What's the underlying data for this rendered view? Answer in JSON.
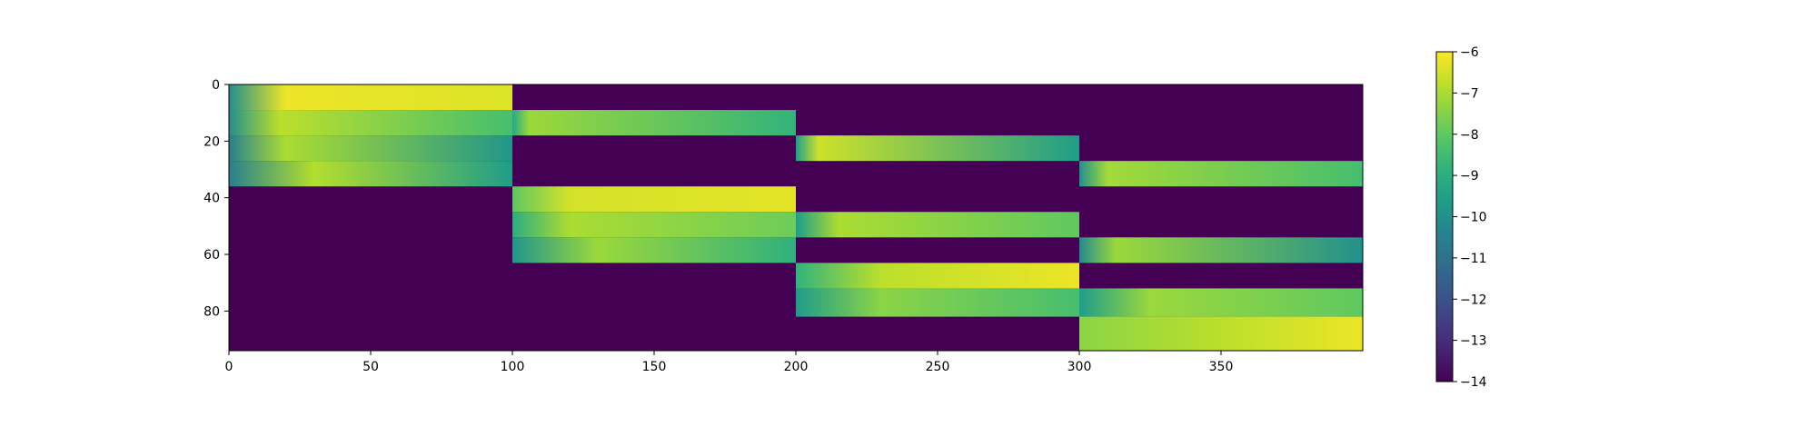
{
  "chart_data": {
    "type": "heatmap",
    "title": "",
    "xlabel": "",
    "ylabel": "",
    "x_range": [
      0,
      400
    ],
    "y_range": [
      0,
      94
    ],
    "y_inverted": true,
    "x_ticks": [
      0,
      50,
      100,
      150,
      200,
      250,
      300,
      350
    ],
    "y_ticks": [
      0,
      20,
      40,
      60,
      80
    ],
    "colormap": "viridis",
    "background_value": -14,
    "colorbar": {
      "vmin": -14,
      "vmax": -6,
      "ticks": [
        -14,
        -13,
        -12,
        -11,
        -10,
        -9,
        -8,
        -7,
        -6
      ]
    },
    "grid": false,
    "bands": [
      {
        "x": [
          0,
          100
        ],
        "y": [
          0,
          9
        ],
        "start": -10,
        "peak": -6.2,
        "end": -6.4,
        "peak_at": 0.2
      },
      {
        "x": [
          0,
          100
        ],
        "y": [
          9,
          18
        ],
        "start": -10,
        "peak": -6.8,
        "end": -8.4,
        "peak_at": 0.18
      },
      {
        "x": [
          0,
          100
        ],
        "y": [
          18,
          27
        ],
        "start": -10.5,
        "peak": -7,
        "end": -9.8,
        "peak_at": 0.2
      },
      {
        "x": [
          0,
          100
        ],
        "y": [
          27,
          36
        ],
        "start": -10.5,
        "peak": -6.9,
        "end": -9.6,
        "peak_at": 0.3
      },
      {
        "x": [
          100,
          200
        ],
        "y": [
          9,
          18
        ],
        "start": -9.2,
        "peak": -7.2,
        "end": -8.8,
        "peak_at": 0.06
      },
      {
        "x": [
          100,
          200
        ],
        "y": [
          36,
          45
        ],
        "start": -8,
        "peak": -6.5,
        "end": -6.3,
        "peak_at": 0.2
      },
      {
        "x": [
          100,
          200
        ],
        "y": [
          45,
          54
        ],
        "start": -9,
        "peak": -7,
        "end": -7.8,
        "peak_at": 0.2
      },
      {
        "x": [
          100,
          200
        ],
        "y": [
          54,
          63
        ],
        "start": -9.8,
        "peak": -7.2,
        "end": -8.9,
        "peak_at": 0.3
      },
      {
        "x": [
          200,
          300
        ],
        "y": [
          18,
          27
        ],
        "start": -9.5,
        "peak": -6.6,
        "end": -9.6,
        "peak_at": 0.08
      },
      {
        "x": [
          200,
          300
        ],
        "y": [
          45,
          54
        ],
        "start": -9.6,
        "peak": -7,
        "end": -8,
        "peak_at": 0.15
      },
      {
        "x": [
          200,
          300
        ],
        "y": [
          63,
          72
        ],
        "start": -8.8,
        "peak": -6.8,
        "end": -6.2,
        "peak_at": 0.3
      },
      {
        "x": [
          200,
          300
        ],
        "y": [
          72,
          82
        ],
        "start": -9.6,
        "peak": -7.4,
        "end": -8.4,
        "peak_at": 0.3
      },
      {
        "x": [
          300,
          400
        ],
        "y": [
          27,
          36
        ],
        "start": -10,
        "peak": -7.1,
        "end": -8.4,
        "peak_at": 0.1
      },
      {
        "x": [
          300,
          400
        ],
        "y": [
          54,
          63
        ],
        "start": -10.2,
        "peak": -7.2,
        "end": -10,
        "peak_at": 0.13
      },
      {
        "x": [
          300,
          400
        ],
        "y": [
          72,
          82
        ],
        "start": -9.6,
        "peak": -7.2,
        "end": -8,
        "peak_at": 0.25
      },
      {
        "x": [
          300,
          400
        ],
        "y": [
          82,
          94
        ],
        "start": -7.4,
        "peak": -6.8,
        "end": -6.2,
        "peak_at": 0.5
      }
    ]
  }
}
